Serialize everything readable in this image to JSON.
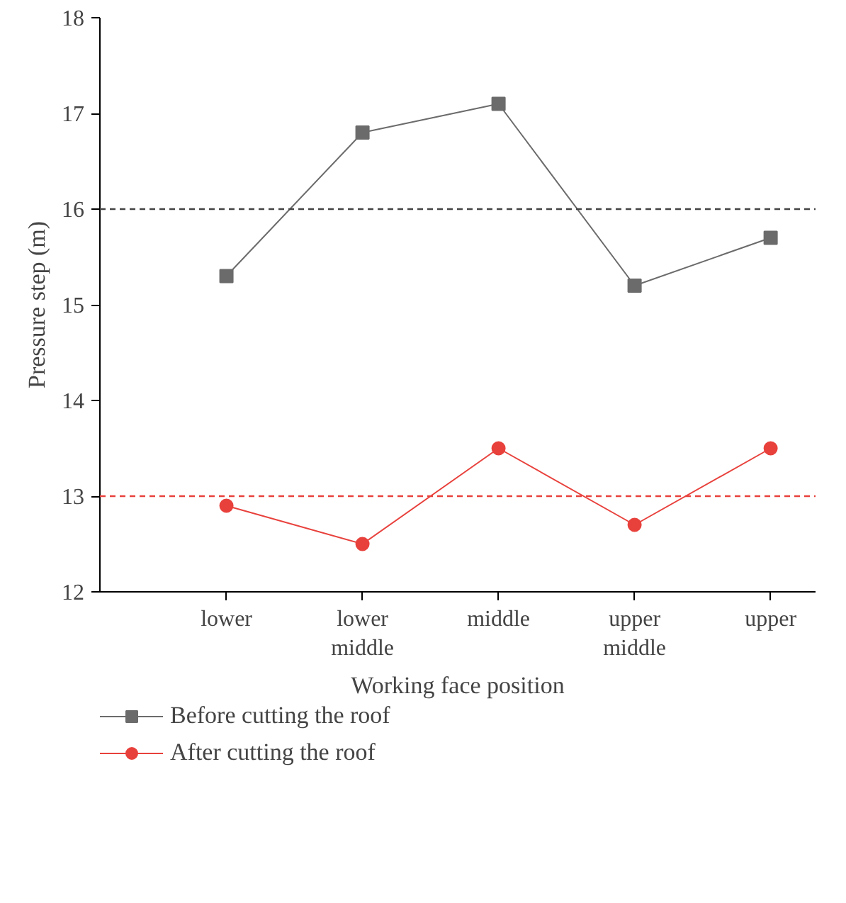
{
  "chart_data": {
    "type": "line",
    "xlabel": "Working face position",
    "ylabel": "Pressure step (m)",
    "categories": [
      "lower",
      "lower middle",
      "middle",
      "upper middle",
      "upper"
    ],
    "series": [
      {
        "name": "Before cutting the roof",
        "color": "#6b6b6b",
        "marker": "square",
        "values": [
          15.3,
          16.8,
          17.1,
          15.2,
          15.7
        ]
      },
      {
        "name": "After cutting the roof",
        "color": "#e8413c",
        "marker": "circle",
        "values": [
          12.9,
          12.5,
          13.5,
          12.7,
          13.5
        ]
      }
    ],
    "ylim": [
      12,
      18
    ],
    "yticks": [
      12,
      13,
      14,
      15,
      16,
      17,
      18
    ],
    "ref_lines": [
      {
        "axis": "y",
        "value": 16,
        "color": "#444444",
        "line_style": "dashed"
      },
      {
        "axis": "y",
        "value": 13,
        "color": "#e8413c",
        "line_style": "dashed"
      }
    ],
    "grid": false,
    "legend": "bottom",
    "line_style": "solid"
  }
}
